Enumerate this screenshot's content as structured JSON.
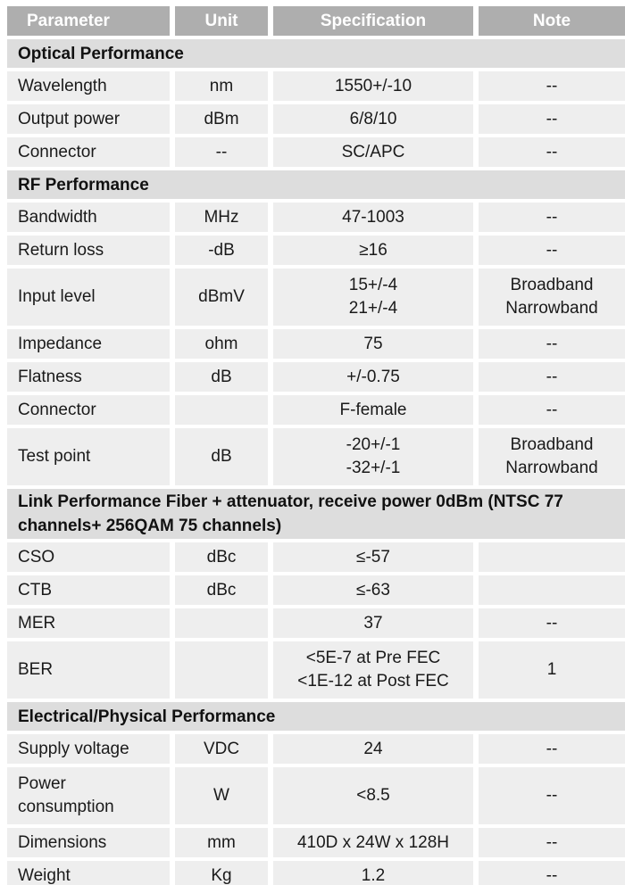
{
  "title": "Product specification table",
  "colors": {
    "header_bg": "#aeaeae",
    "header_text": "#ffffff",
    "section_bg": "#dddddd",
    "row_bg": "#eeeeee",
    "text": "#1a1a1a",
    "background": "#ffffff"
  },
  "header": {
    "parameter": "Parameter",
    "unit": "Unit",
    "specification": "Specification",
    "note": "Note"
  },
  "rows": [
    {
      "type": "section",
      "label": "Optical Performance"
    },
    {
      "type": "data",
      "parameter": "Wavelength",
      "unit": "nm",
      "specification": "1550+/-10",
      "note": "--"
    },
    {
      "type": "data",
      "parameter": "Output power",
      "unit": "dBm",
      "specification": "6/8/10",
      "note": "--"
    },
    {
      "type": "data",
      "parameter": "Connector",
      "unit": "--",
      "specification": "SC/APC",
      "note": "--"
    },
    {
      "type": "section",
      "label": "RF Performance"
    },
    {
      "type": "data",
      "parameter": "Bandwidth",
      "unit": "MHz",
      "specification": "47-1003",
      "note": "--"
    },
    {
      "type": "data",
      "parameter": "Return loss",
      "unit": "-dB",
      "specification": "≥16",
      "note": "--"
    },
    {
      "type": "data",
      "parameter": "Input level",
      "unit": "dBmV",
      "specification": "15+/-4\n21+/-4",
      "note": "Broadband\nNarrowband"
    },
    {
      "type": "data",
      "parameter": "Impedance",
      "unit": "ohm",
      "specification": "75",
      "note": "--"
    },
    {
      "type": "data",
      "parameter": "Flatness",
      "unit": "dB",
      "specification": "+/-0.75",
      "note": "--"
    },
    {
      "type": "data",
      "parameter": "Connector",
      "unit": "",
      "specification": "F-female",
      "note": "--"
    },
    {
      "type": "data",
      "parameter": "Test point",
      "unit": "dB",
      "specification": "-20+/-1\n-32+/-1",
      "note": "Broadband\nNarrowband"
    },
    {
      "type": "section",
      "label": "Link Performance Fiber + attenuator, receive power 0dBm (NTSC 77 channels+ 256QAM 75 channels)"
    },
    {
      "type": "data",
      "parameter": "CSO",
      "unit": "dBc",
      "specification": "≤-57",
      "note": ""
    },
    {
      "type": "data",
      "parameter": "CTB",
      "unit": "dBc",
      "specification": "≤-63",
      "note": ""
    },
    {
      "type": "data",
      "parameter": "MER",
      "unit": "",
      "specification": "37",
      "note": "--"
    },
    {
      "type": "data",
      "parameter": "BER",
      "unit": "",
      "specification": "<5E-7 at Pre FEC\n<1E-12 at Post FEC",
      "note": "1"
    },
    {
      "type": "section",
      "label": "Electrical/Physical Performance"
    },
    {
      "type": "data",
      "parameter": "Supply voltage",
      "unit": "VDC",
      "specification": "24",
      "note": "--"
    },
    {
      "type": "data",
      "parameter": "Power consumption",
      "unit": "W",
      "specification": "<8.5",
      "note": "--"
    },
    {
      "type": "data",
      "parameter": "Dimensions",
      "unit": "mm",
      "specification": "410D x 24W x 128H",
      "note": "--"
    },
    {
      "type": "data",
      "parameter": "Weight",
      "unit": "Kg",
      "specification": "1.2",
      "note": "--"
    }
  ]
}
